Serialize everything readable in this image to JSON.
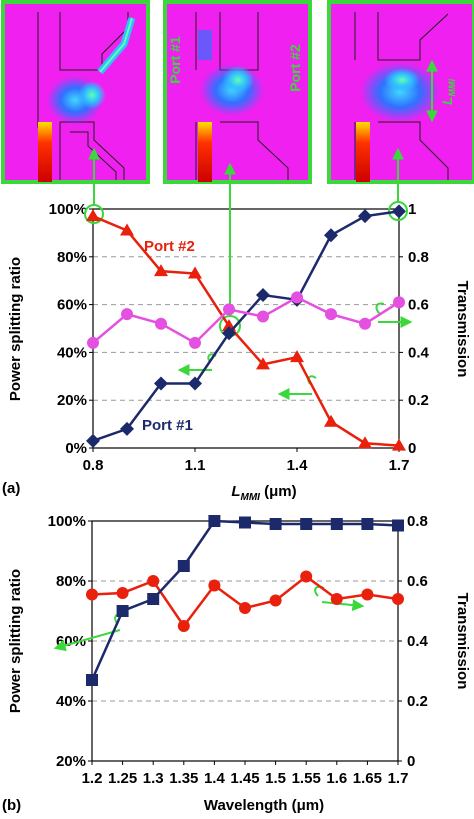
{
  "insets": {
    "port1_label": "Port #1",
    "port2_label": "Port #2",
    "lmmi_main": "L",
    "lmmi_sub": "MMI"
  },
  "panel_a": {
    "label": "(a)",
    "ylabel_left": "Power splitting ratio",
    "ylabel_right": "Transmission",
    "xlabel_main": "L",
    "xlabel_sub": "MMI",
    "xlabel_unit": " (μm)",
    "xticks": [
      "0.8",
      "1.1",
      "1.4",
      "1.7"
    ],
    "yticks_left": [
      "0%",
      "20%",
      "40%",
      "60%",
      "80%",
      "100%"
    ],
    "yticks_right": [
      "0",
      "0.2",
      "0.4",
      "0.6",
      "0.8",
      "1"
    ]
  },
  "panel_b": {
    "label": "(b)",
    "ylabel_left": "Power splitting ratio",
    "ylabel_right": "Transmission",
    "xlabel": "Wavelength (μm)",
    "xticks": [
      "1.2",
      "1.25",
      "1.3",
      "1.35",
      "1.4",
      "1.45",
      "1.5",
      "1.55",
      "1.6",
      "1.65",
      "1.7"
    ],
    "yticks_left": [
      "20%",
      "40%",
      "60%",
      "80%",
      "100%"
    ],
    "yticks_right": [
      "0",
      "0.2",
      "0.4",
      "0.6",
      "0.8"
    ]
  },
  "chart_data": [
    {
      "type": "line",
      "xlabel": "LMMI (μm)",
      "ylabel": "Power splitting ratio",
      "y2label": "Transmission",
      "xlim": [
        0.8,
        1.7
      ],
      "ylim": [
        0,
        100
      ],
      "y2lim": [
        0,
        1
      ],
      "grid": true,
      "x": [
        0.8,
        0.9,
        1.0,
        1.1,
        1.2,
        1.3,
        1.4,
        1.5,
        1.6,
        1.7
      ],
      "series": [
        {
          "name": "Port #2",
          "axis": "left",
          "color": "#e8200c",
          "marker": "triangle",
          "values": [
            97,
            91,
            74,
            73,
            51,
            35,
            38,
            11,
            2,
            1
          ]
        },
        {
          "name": "Port #1",
          "axis": "left",
          "color": "#1c2a6c",
          "marker": "diamond",
          "values": [
            3,
            8,
            27,
            27,
            48,
            64,
            62,
            89,
            97,
            99
          ]
        },
        {
          "axis": "right",
          "color": "#e451e0",
          "marker": "circle",
          "values": [
            0.44,
            0.56,
            0.52,
            0.44,
            0.58,
            0.55,
            0.63,
            0.56,
            0.52,
            0.61
          ]
        }
      ]
    },
    {
      "type": "line",
      "xlabel": "Wavelength (μm)",
      "ylabel": "Power splitting ratio",
      "y2label": "Transmission",
      "xlim": [
        1.2,
        1.7
      ],
      "ylim": [
        20,
        100
      ],
      "y2lim": [
        0,
        0.8
      ],
      "grid": true,
      "x": [
        1.2,
        1.25,
        1.3,
        1.35,
        1.4,
        1.45,
        1.5,
        1.55,
        1.6,
        1.65,
        1.7
      ],
      "series": [
        {
          "axis": "left",
          "color": "#e8200c",
          "marker": "circle",
          "values": [
            75.5,
            76,
            80,
            65,
            78.5,
            71,
            73.5,
            81.5,
            74,
            75.5,
            74
          ]
        },
        {
          "axis": "right",
          "color": "#1c2a6c",
          "marker": "square",
          "values": [
            0.27,
            0.5,
            0.54,
            0.65,
            0.8,
            0.795,
            0.79,
            0.79,
            0.79,
            0.79,
            0.785
          ]
        }
      ]
    }
  ]
}
